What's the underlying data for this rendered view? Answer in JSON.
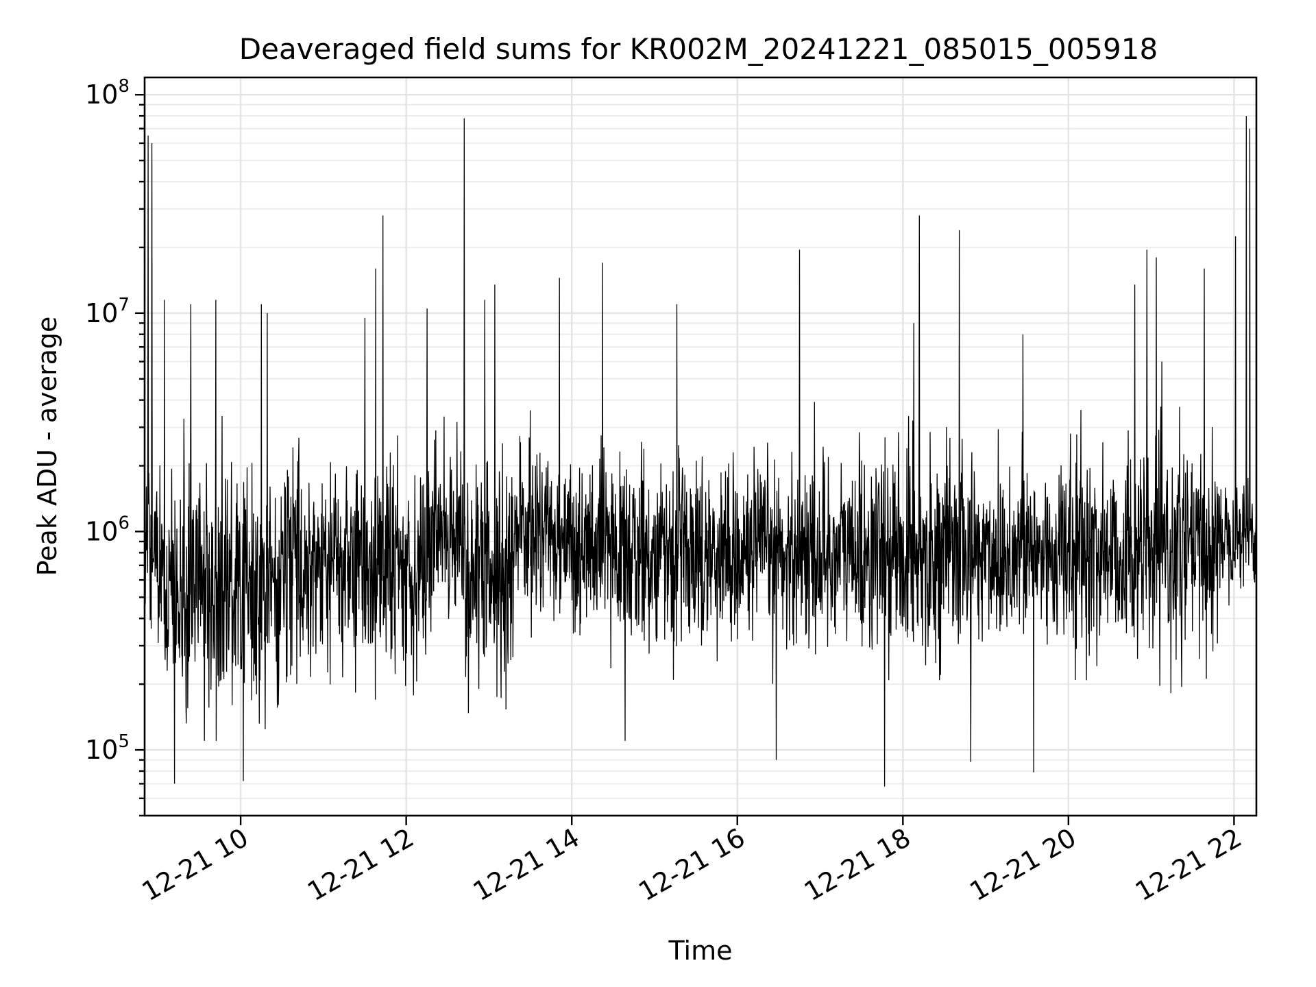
{
  "chart_data": {
    "type": "line",
    "title": "Deaveraged field sums for KR002M_20241221_085015_005918",
    "xlabel": "Time",
    "ylabel": "Peak ADU - average",
    "yscale": "log",
    "ylim": [
      50000,
      120000000
    ],
    "xlim_hours": [
      8.84,
      22.27
    ],
    "grid": true,
    "x_ticks": [
      {
        "value": 10,
        "label": "12-21 10"
      },
      {
        "value": 12,
        "label": "12-21 12"
      },
      {
        "value": 14,
        "label": "12-21 14"
      },
      {
        "value": 16,
        "label": "12-21 16"
      },
      {
        "value": 18,
        "label": "12-21 18"
      },
      {
        "value": 20,
        "label": "12-21 20"
      },
      {
        "value": 22,
        "label": "12-21 22"
      }
    ],
    "y_ticks": [
      {
        "value": 100000,
        "base": "10",
        "exp": "5"
      },
      {
        "value": 1000000,
        "base": "10",
        "exp": "6"
      },
      {
        "value": 10000000,
        "base": "10",
        "exp": "7"
      },
      {
        "value": 100000000,
        "base": "10",
        "exp": "8"
      }
    ],
    "series": [
      {
        "name": "deaveraged field sum",
        "color": "#000000",
        "segments": [
          {
            "start": 8.84,
            "end": 9.0,
            "median": 900000,
            "spread": 0.22
          },
          {
            "start": 9.0,
            "end": 10.5,
            "median": 550000,
            "spread": 0.26
          },
          {
            "start": 10.5,
            "end": 12.3,
            "median": 700000,
            "spread": 0.24
          },
          {
            "start": 12.3,
            "end": 12.7,
            "median": 1050000,
            "spread": 0.18
          },
          {
            "start": 12.7,
            "end": 13.3,
            "median": 600000,
            "spread": 0.28
          },
          {
            "start": 13.3,
            "end": 14.0,
            "median": 1000000,
            "spread": 0.19
          },
          {
            "start": 14.0,
            "end": 16.8,
            "median": 800000,
            "spread": 0.2
          },
          {
            "start": 16.8,
            "end": 20.5,
            "median": 800000,
            "spread": 0.22
          },
          {
            "start": 20.5,
            "end": 21.8,
            "median": 800000,
            "spread": 0.23
          },
          {
            "start": 21.8,
            "end": 22.27,
            "median": 1000000,
            "spread": 0.12
          }
        ],
        "spikes": [
          {
            "x": 8.88,
            "y": 65000000
          },
          {
            "x": 8.93,
            "y": 60000000
          },
          {
            "x": 9.08,
            "y": 11500000
          },
          {
            "x": 9.2,
            "y": 70000
          },
          {
            "x": 9.4,
            "y": 11000000
          },
          {
            "x": 9.7,
            "y": 11500000
          },
          {
            "x": 10.03,
            "y": 72000
          },
          {
            "x": 10.25,
            "y": 11000000
          },
          {
            "x": 10.32,
            "y": 10000000
          },
          {
            "x": 11.5,
            "y": 9500000
          },
          {
            "x": 11.63,
            "y": 16000000
          },
          {
            "x": 11.72,
            "y": 28000000
          },
          {
            "x": 12.25,
            "y": 10500000
          },
          {
            "x": 12.7,
            "y": 78000000
          },
          {
            "x": 12.95,
            "y": 11500000
          },
          {
            "x": 13.07,
            "y": 13500000
          },
          {
            "x": 13.85,
            "y": 14500000
          },
          {
            "x": 14.37,
            "y": 17000000
          },
          {
            "x": 15.27,
            "y": 11000000
          },
          {
            "x": 16.47,
            "y": 90000
          },
          {
            "x": 16.75,
            "y": 19500000
          },
          {
            "x": 17.78,
            "y": 68000
          },
          {
            "x": 18.13,
            "y": 9000000
          },
          {
            "x": 18.2,
            "y": 28000000
          },
          {
            "x": 18.68,
            "y": 24000000
          },
          {
            "x": 18.82,
            "y": 88000
          },
          {
            "x": 19.45,
            "y": 8000000
          },
          {
            "x": 19.58,
            "y": 79000
          },
          {
            "x": 20.8,
            "y": 13500000
          },
          {
            "x": 20.95,
            "y": 19500000
          },
          {
            "x": 21.06,
            "y": 18000000
          },
          {
            "x": 21.64,
            "y": 16000000
          },
          {
            "x": 22.02,
            "y": 22500000
          },
          {
            "x": 22.15,
            "y": 80000000
          },
          {
            "x": 22.19,
            "y": 70000000
          }
        ]
      }
    ]
  }
}
